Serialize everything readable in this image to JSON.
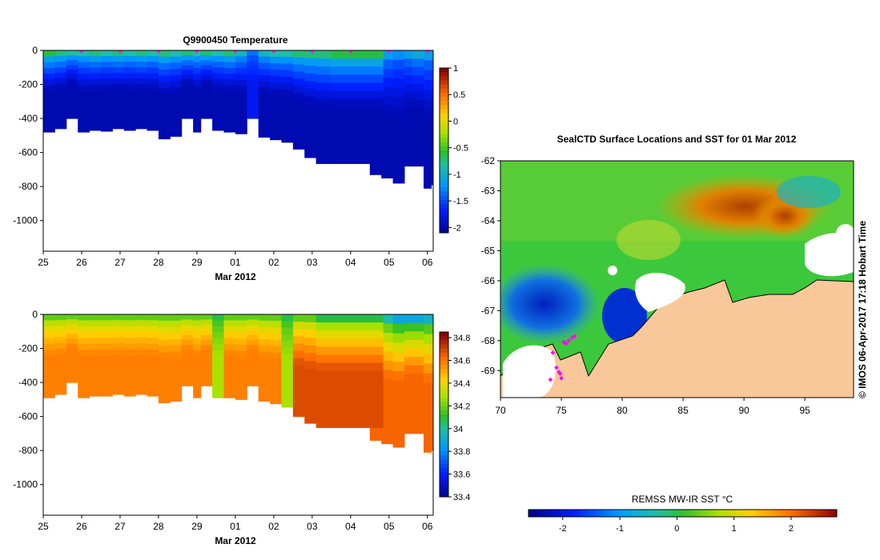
{
  "chart_data": [
    {
      "type": "heatmap",
      "title": "Q9900450  Temperature",
      "xlabel": "Mar 2012",
      "x_ticks": [
        "25",
        "26",
        "27",
        "28",
        "29",
        "01",
        "02",
        "03",
        "04",
        "05",
        "06"
      ],
      "y_ticks": [
        "0",
        "-200",
        "-400",
        "-600",
        "-800",
        "-1000"
      ],
      "ylim": [
        -1180,
        0
      ],
      "colorbar": {
        "ticks": [
          "1",
          "0.5",
          "0",
          "-0.5",
          "-1",
          "-1.5",
          "-2"
        ],
        "range": [
          -2.1,
          1.0
        ]
      },
      "profiles": [
        {
          "x": 25.0,
          "depth": 480,
          "surface": -0.6,
          "bottom": -1.95
        },
        {
          "x": 25.3,
          "depth": 460,
          "surface": -0.7,
          "bottom": -1.95
        },
        {
          "x": 25.6,
          "depth": 400,
          "surface": -0.8,
          "bottom": -1.95
        },
        {
          "x": 25.9,
          "depth": 480,
          "surface": -0.8,
          "bottom": -1.95
        },
        {
          "x": 26.2,
          "depth": 470,
          "surface": -0.7,
          "bottom": -1.95
        },
        {
          "x": 26.5,
          "depth": 475,
          "surface": -0.8,
          "bottom": -1.95
        },
        {
          "x": 26.8,
          "depth": 460,
          "surface": -0.7,
          "bottom": -1.95
        },
        {
          "x": 27.1,
          "depth": 470,
          "surface": -0.8,
          "bottom": -1.95
        },
        {
          "x": 27.4,
          "depth": 460,
          "surface": -0.7,
          "bottom": -1.95
        },
        {
          "x": 27.7,
          "depth": 470,
          "surface": -0.8,
          "bottom": -1.95
        },
        {
          "x": 28.0,
          "depth": 520,
          "surface": -0.7,
          "bottom": -1.95
        },
        {
          "x": 28.3,
          "depth": 505,
          "surface": -0.8,
          "bottom": -1.95
        },
        {
          "x": 28.6,
          "depth": 400,
          "surface": -0.7,
          "bottom": -1.95
        },
        {
          "x": 28.9,
          "depth": 480,
          "surface": -0.8,
          "bottom": -1.95
        },
        {
          "x": 29.1,
          "depth": 400,
          "surface": -0.7,
          "bottom": -1.95
        },
        {
          "x": 29.4,
          "depth": 470,
          "surface": -0.8,
          "bottom": -1.95
        },
        {
          "x": 29.7,
          "depth": 480,
          "surface": -0.7,
          "bottom": -1.95
        },
        {
          "x": 30.0,
          "depth": 490,
          "surface": -0.9,
          "bottom": -1.95
        },
        {
          "x": 30.3,
          "depth": 400,
          "surface": -1.3,
          "bottom": -1.7
        },
        {
          "x": 30.6,
          "depth": 510,
          "surface": -0.9,
          "bottom": -1.95
        },
        {
          "x": 30.9,
          "depth": 525,
          "surface": -0.8,
          "bottom": -1.95
        },
        {
          "x": 31.2,
          "depth": 540,
          "surface": -0.8,
          "bottom": -1.95
        },
        {
          "x": 31.5,
          "depth": 580,
          "surface": -0.7,
          "bottom": -1.95
        },
        {
          "x": 31.8,
          "depth": 630,
          "surface": -0.7,
          "bottom": -1.95
        },
        {
          "x": 32.1,
          "depth": 665,
          "surface": -0.7,
          "bottom": -1.95
        },
        {
          "x": 32.5,
          "depth": 665,
          "surface": -0.6,
          "bottom": -1.95
        },
        {
          "x": 33.5,
          "depth": 730,
          "surface": -1.1,
          "bottom": -1.95
        },
        {
          "x": 33.8,
          "depth": 750,
          "surface": -1.1,
          "bottom": -1.95
        },
        {
          "x": 34.1,
          "depth": 780,
          "surface": -1.2,
          "bottom": -1.95
        },
        {
          "x": 34.4,
          "depth": 680,
          "surface": -1.1,
          "bottom": -1.95
        },
        {
          "x": 34.6,
          "depth": 680,
          "surface": -1.0,
          "bottom": -1.95
        },
        {
          "x": 34.9,
          "depth": 810,
          "surface": -1.1,
          "bottom": -1.95
        },
        {
          "x": 35.1,
          "depth": 790,
          "surface": -1.1,
          "bottom": -1.95
        }
      ]
    },
    {
      "type": "heatmap",
      "title": "",
      "xlabel": "Mar 2012",
      "x_ticks": [
        "25",
        "26",
        "27",
        "28",
        "29",
        "01",
        "02",
        "03",
        "04",
        "05",
        "06"
      ],
      "y_ticks": [
        "0",
        "-200",
        "-400",
        "-600",
        "-800",
        "-1000"
      ],
      "ylim": [
        -1180,
        0
      ],
      "colorbar": {
        "ticks": [
          "34.8",
          "34.6",
          "34.4",
          "34.2",
          "34",
          "33.8",
          "33.6",
          "33.4"
        ],
        "range": [
          33.4,
          34.85
        ]
      },
      "profiles": [
        {
          "x": 25.0,
          "depth": 490,
          "surface": 34.2,
          "bottom": 34.6
        },
        {
          "x": 25.3,
          "depth": 470,
          "surface": 34.2,
          "bottom": 34.6
        },
        {
          "x": 25.6,
          "depth": 400,
          "surface": 34.2,
          "bottom": 34.6
        },
        {
          "x": 25.9,
          "depth": 490,
          "surface": 34.2,
          "bottom": 34.6
        },
        {
          "x": 26.2,
          "depth": 480,
          "surface": 34.2,
          "bottom": 34.6
        },
        {
          "x": 26.5,
          "depth": 480,
          "surface": 34.2,
          "bottom": 34.6
        },
        {
          "x": 26.8,
          "depth": 470,
          "surface": 34.2,
          "bottom": 34.6
        },
        {
          "x": 27.1,
          "depth": 480,
          "surface": 34.2,
          "bottom": 34.6
        },
        {
          "x": 27.4,
          "depth": 470,
          "surface": 34.2,
          "bottom": 34.6
        },
        {
          "x": 27.7,
          "depth": 480,
          "surface": 34.2,
          "bottom": 34.6
        },
        {
          "x": 28.0,
          "depth": 520,
          "surface": 34.2,
          "bottom": 34.6
        },
        {
          "x": 28.3,
          "depth": 510,
          "surface": 34.2,
          "bottom": 34.6
        },
        {
          "x": 28.6,
          "depth": 420,
          "surface": 34.2,
          "bottom": 34.6
        },
        {
          "x": 28.9,
          "depth": 490,
          "surface": 34.2,
          "bottom": 34.6
        },
        {
          "x": 29.1,
          "depth": 420,
          "surface": 34.2,
          "bottom": 34.6
        },
        {
          "x": 29.4,
          "depth": 490,
          "surface": 34.1,
          "bottom": 34.3
        },
        {
          "x": 29.7,
          "depth": 490,
          "surface": 34.2,
          "bottom": 34.6
        },
        {
          "x": 30.0,
          "depth": 500,
          "surface": 34.2,
          "bottom": 34.6
        },
        {
          "x": 30.3,
          "depth": 420,
          "surface": 34.2,
          "bottom": 34.6
        },
        {
          "x": 30.6,
          "depth": 510,
          "surface": 34.2,
          "bottom": 34.6
        },
        {
          "x": 30.9,
          "depth": 525,
          "surface": 34.2,
          "bottom": 34.6
        },
        {
          "x": 31.2,
          "depth": 545,
          "surface": 34.1,
          "bottom": 34.3
        },
        {
          "x": 31.5,
          "depth": 600,
          "surface": 34.2,
          "bottom": 34.7
        },
        {
          "x": 31.8,
          "depth": 640,
          "surface": 34.2,
          "bottom": 34.7
        },
        {
          "x": 32.1,
          "depth": 665,
          "surface": 34.1,
          "bottom": 34.7
        },
        {
          "x": 32.5,
          "depth": 665,
          "surface": 34.1,
          "bottom": 34.7
        },
        {
          "x": 33.5,
          "depth": 740,
          "surface": 34.0,
          "bottom": 34.65
        },
        {
          "x": 33.8,
          "depth": 760,
          "surface": 34.0,
          "bottom": 34.65
        },
        {
          "x": 34.1,
          "depth": 780,
          "surface": 33.9,
          "bottom": 34.65
        },
        {
          "x": 34.4,
          "depth": 700,
          "surface": 33.9,
          "bottom": 34.65
        },
        {
          "x": 34.6,
          "depth": 700,
          "surface": 33.9,
          "bottom": 34.65
        },
        {
          "x": 34.9,
          "depth": 810,
          "surface": 33.95,
          "bottom": 34.65
        },
        {
          "x": 35.1,
          "depth": 800,
          "surface": 33.95,
          "bottom": 34.65
        }
      ]
    },
    {
      "type": "heatmap",
      "title": "SealCTD Surface Locations and SST for 01 Mar 2012",
      "xlabel": "",
      "x_ticks": [
        "70",
        "75",
        "80",
        "85",
        "90",
        "95"
      ],
      "y_ticks": [
        "-62",
        "-63",
        "-64",
        "-65",
        "-66",
        "-67",
        "-68",
        "-69"
      ],
      "xlim": [
        70,
        99
      ],
      "ylim": [
        -69.9,
        -62
      ],
      "side_label": "© IMOS 06-Apr-2017 17:18 Hobart Time",
      "colorbar": {
        "label": "REMSS MW-IR SST °C",
        "ticks": [
          "-2",
          "-1",
          "0",
          "1",
          "2"
        ],
        "range": [
          -2.6,
          2.8
        ]
      },
      "seal_locations": [
        {
          "lon": 75.6,
          "lat": -68.0
        },
        {
          "lon": 75.9,
          "lat": -67.9
        },
        {
          "lon": 75.4,
          "lat": -68.1
        },
        {
          "lon": 76.1,
          "lat": -67.85
        },
        {
          "lon": 74.3,
          "lat": -68.4
        },
        {
          "lon": 74.6,
          "lat": -68.9
        },
        {
          "lon": 74.9,
          "lat": -69.1
        },
        {
          "lon": 75.0,
          "lat": -69.25
        },
        {
          "lon": 74.8,
          "lat": -69.05
        },
        {
          "lon": 75.2,
          "lat": -68.05
        },
        {
          "lon": 74.1,
          "lat": -69.3
        }
      ]
    }
  ]
}
